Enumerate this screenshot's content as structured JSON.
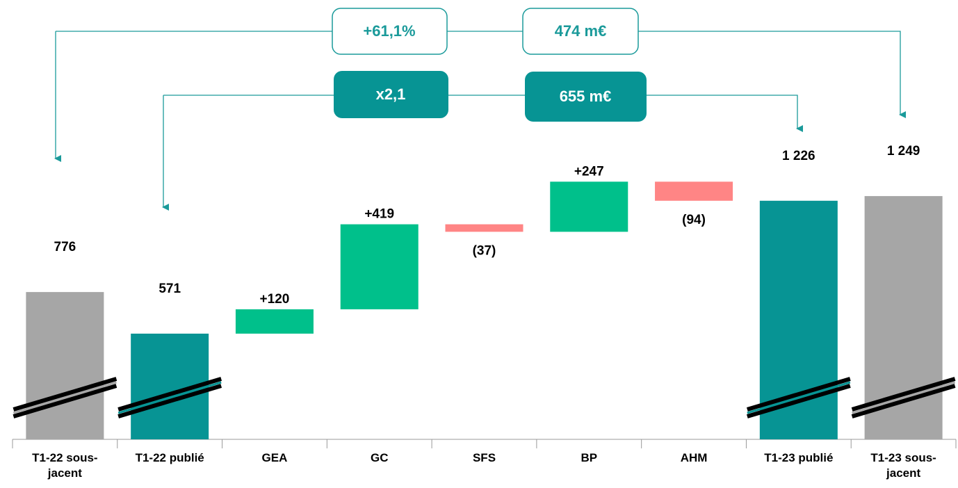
{
  "chart_data": {
    "type": "waterfall",
    "categories": [
      "T1-22 sous-jacent",
      "T1-22 publié",
      "GEA",
      "GC",
      "SFS",
      "BP",
      "AHM",
      "T1-23 publié",
      "T1-23 sous-jacent"
    ],
    "values": [
      776,
      571,
      120,
      419,
      -37,
      247,
      -94,
      1226,
      1249
    ],
    "value_labels": [
      "776",
      "571",
      "+120",
      "+419",
      "(37)",
      "+247",
      "(94)",
      "1 226",
      "1 249"
    ],
    "measures": [
      "total",
      "total",
      "relative",
      "relative",
      "relative",
      "relative",
      "relative",
      "total",
      "total"
    ],
    "colors": [
      "#a6a6a6",
      "#079494",
      "#00c08b",
      "#00c08b",
      "#ff8585",
      "#00c08b",
      "#ff8585",
      "#079494",
      "#a6a6a6"
    ],
    "ylim": [
      50,
      1400
    ],
    "annotations": [
      "+61,1%",
      "474 m€",
      "x2,1",
      "655 m€"
    ]
  }
}
